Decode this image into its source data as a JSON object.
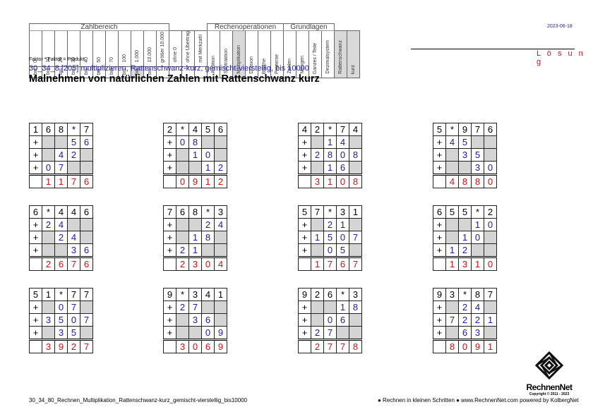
{
  "header": {
    "groups": [
      "Zahlbereich",
      "Rechenoperationen",
      "Grundlagen"
    ],
    "number_ranges": [
      "0",
      "10",
      "20",
      "30",
      "40",
      "50",
      "70",
      "100",
      "1.000",
      "10.000",
      "10.000"
    ],
    "bis_label": "bis",
    "groesser_label": "größer",
    "number_options": [
      "ohne 0",
      "ohne Übertrag",
      "mit Merkzahl"
    ],
    "operations": [
      "Addition",
      "Subtraktion",
      "Multiplikation",
      "Division",
      "Brüche",
      "Prozente"
    ],
    "basics": [
      "Zahlen",
      "Mengen",
      "Ganzes / Teile",
      "Dezimalsystem",
      "Rattenschwanz",
      "kurz"
    ]
  },
  "date": "2023-06-18",
  "solution_label": "L ö s u n g",
  "hint": "Faktor * Faktor = Produkt",
  "subtitle": "30_34_8   [205]   multiplizieren, Rattenschwanz-kurz, gemischt-vierstellig, bis 10000",
  "title": "Malnehmen von natürlichen Zahlen mit Rattenschwanz kurz",
  "tasks": [
    {
      "expr": [
        "1",
        "6",
        "8",
        "*",
        "7"
      ],
      "rows": [
        [
          "+",
          "",
          "",
          "5",
          "6"
        ],
        [
          "+",
          "",
          "4",
          "2",
          ""
        ],
        [
          "+",
          "0",
          "7",
          "",
          ""
        ]
      ],
      "result": [
        "",
        "1",
        "1",
        "7",
        "6"
      ]
    },
    {
      "expr": [
        "2",
        "*",
        "4",
        "5",
        "6"
      ],
      "rows": [
        [
          "+",
          "0",
          "8",
          "",
          ""
        ],
        [
          "+",
          "",
          "1",
          "0",
          ""
        ],
        [
          "+",
          "",
          "",
          "1",
          "2"
        ]
      ],
      "result": [
        "",
        "0",
        "9",
        "1",
        "2"
      ]
    },
    {
      "expr": [
        "4",
        "2",
        "*",
        "7",
        "4"
      ],
      "rows": [
        [
          "+",
          "",
          "1",
          "4",
          ""
        ],
        [
          "+",
          "2",
          "8",
          "0",
          "8"
        ],
        [
          "+",
          "",
          "1",
          "6",
          ""
        ]
      ],
      "result": [
        "",
        "3",
        "1",
        "0",
        "8"
      ]
    },
    {
      "expr": [
        "5",
        "*",
        "9",
        "7",
        "6"
      ],
      "rows": [
        [
          "+",
          "4",
          "5",
          "",
          ""
        ],
        [
          "+",
          "",
          "3",
          "5",
          ""
        ],
        [
          "+",
          "",
          "",
          "3",
          "0"
        ]
      ],
      "result": [
        "",
        "4",
        "8",
        "8",
        "0"
      ]
    },
    {
      "expr": [
        "6",
        "*",
        "4",
        "4",
        "6"
      ],
      "rows": [
        [
          "+",
          "2",
          "4",
          "",
          ""
        ],
        [
          "+",
          "",
          "2",
          "4",
          ""
        ],
        [
          "+",
          "",
          "",
          "3",
          "6"
        ]
      ],
      "result": [
        "",
        "2",
        "6",
        "7",
        "6"
      ]
    },
    {
      "expr": [
        "7",
        "6",
        "8",
        "*",
        "3"
      ],
      "rows": [
        [
          "+",
          "",
          "",
          "2",
          "4"
        ],
        [
          "+",
          "",
          "1",
          "8",
          ""
        ],
        [
          "+",
          "2",
          "1",
          "",
          ""
        ]
      ],
      "result": [
        "",
        "2",
        "3",
        "0",
        "4"
      ]
    },
    {
      "expr": [
        "5",
        "7",
        "*",
        "3",
        "1"
      ],
      "rows": [
        [
          "+",
          "",
          "2",
          "1",
          ""
        ],
        [
          "+",
          "1",
          "5",
          "0",
          "7"
        ],
        [
          "+",
          "",
          "0",
          "5",
          ""
        ]
      ],
      "result": [
        "",
        "1",
        "7",
        "6",
        "7"
      ]
    },
    {
      "expr": [
        "6",
        "5",
        "5",
        "*",
        "2"
      ],
      "rows": [
        [
          "+",
          "",
          "",
          "1",
          "0"
        ],
        [
          "+",
          "",
          "1",
          "0",
          ""
        ],
        [
          "+",
          "1",
          "2",
          "",
          ""
        ]
      ],
      "result": [
        "",
        "1",
        "3",
        "1",
        "0"
      ]
    },
    {
      "expr": [
        "5",
        "1",
        "*",
        "7",
        "7"
      ],
      "rows": [
        [
          "+",
          "",
          "0",
          "7",
          ""
        ],
        [
          "+",
          "3",
          "5",
          "0",
          "7"
        ],
        [
          "+",
          "",
          "3",
          "5",
          ""
        ]
      ],
      "result": [
        "",
        "3",
        "9",
        "2",
        "7"
      ]
    },
    {
      "expr": [
        "9",
        "*",
        "3",
        "4",
        "1"
      ],
      "rows": [
        [
          "+",
          "2",
          "7",
          "",
          ""
        ],
        [
          "+",
          "",
          "3",
          "6",
          ""
        ],
        [
          "+",
          "",
          "",
          "0",
          "9"
        ]
      ],
      "result": [
        "",
        "3",
        "0",
        "6",
        "9"
      ]
    },
    {
      "expr": [
        "9",
        "2",
        "6",
        "*",
        "3"
      ],
      "rows": [
        [
          "+",
          "",
          "",
          "1",
          "8"
        ],
        [
          "+",
          "",
          "0",
          "6",
          ""
        ],
        [
          "+",
          "2",
          "7",
          "",
          ""
        ]
      ],
      "result": [
        "",
        "2",
        "7",
        "7",
        "8"
      ]
    },
    {
      "expr": [
        "9",
        "3",
        "*",
        "8",
        "7"
      ],
      "rows": [
        [
          "+",
          "",
          "2",
          "4",
          ""
        ],
        [
          "+",
          "7",
          "2",
          "2",
          "1"
        ],
        [
          "+",
          "",
          "6",
          "3",
          ""
        ]
      ],
      "result": [
        "",
        "8",
        "0",
        "9",
        "1"
      ]
    }
  ],
  "footer": {
    "filename": "30_34_80_Rechnen_Multiplikation_Rattenschwanz-kurz_gemischt-vierstellig_bis10000",
    "slogan": "● Rechnen in kleinen Schritten ●",
    "website": "www.RechnenNet.com powered by KolbergNet"
  },
  "logo": {
    "name": "RechnenNet",
    "copyright": "Copyright © 2011 - 2023"
  }
}
